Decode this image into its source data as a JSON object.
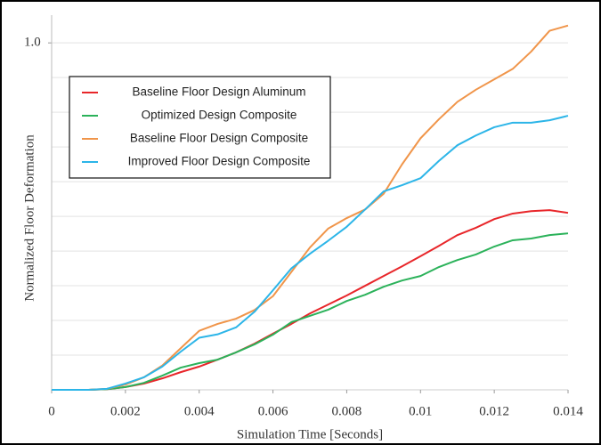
{
  "chart_data": {
    "type": "line",
    "xlabel": "Simulation Time [Seconds]",
    "ylabel": "Normalized Floor Deformation",
    "x": [
      0,
      0.0005,
      0.001,
      0.0015,
      0.002,
      0.0025,
      0.003,
      0.0035,
      0.004,
      0.0045,
      0.005,
      0.0055,
      0.006,
      0.0065,
      0.007,
      0.0075,
      0.008,
      0.0085,
      0.009,
      0.0095,
      0.01,
      0.0105,
      0.011,
      0.0115,
      0.012,
      0.0125,
      0.013,
      0.0135,
      0.014
    ],
    "series": [
      {
        "name": "Baseline Floor Design Aluminum",
        "color": "#e8262a",
        "values": [
          0,
          0,
          0,
          0.002,
          0.008,
          0.018,
          0.033,
          0.051,
          0.067,
          0.087,
          0.108,
          0.133,
          0.162,
          0.19,
          0.22,
          0.246,
          0.272,
          0.3,
          0.328,
          0.356,
          0.385,
          0.415,
          0.446,
          0.467,
          0.492,
          0.508,
          0.515,
          0.518,
          0.51
        ]
      },
      {
        "name": "Optimized Design Composite",
        "color": "#2bb25a",
        "values": [
          0,
          0,
          0,
          0.002,
          0.008,
          0.02,
          0.041,
          0.064,
          0.077,
          0.087,
          0.108,
          0.131,
          0.159,
          0.195,
          0.213,
          0.231,
          0.256,
          0.274,
          0.297,
          0.315,
          0.328,
          0.354,
          0.374,
          0.39,
          0.413,
          0.431,
          0.436,
          0.446,
          0.451
        ]
      },
      {
        "name": "Baseline Floor Design Composite",
        "color": "#f0954a",
        "values": [
          0,
          0,
          0,
          0.003,
          0.015,
          0.036,
          0.07,
          0.12,
          0.17,
          0.19,
          0.205,
          0.23,
          0.27,
          0.34,
          0.41,
          0.465,
          0.495,
          0.52,
          0.565,
          0.65,
          0.725,
          0.78,
          0.83,
          0.865,
          0.895,
          0.925,
          0.975,
          1.035,
          1.05
        ]
      },
      {
        "name": "Improved Floor Design Composite",
        "color": "#2cb5e8",
        "values": [
          0,
          0,
          0,
          0.003,
          0.018,
          0.036,
          0.067,
          0.11,
          0.15,
          0.16,
          0.18,
          0.225,
          0.287,
          0.35,
          0.392,
          0.43,
          0.47,
          0.52,
          0.572,
          0.59,
          0.61,
          0.66,
          0.705,
          0.733,
          0.757,
          0.77,
          0.77,
          0.777,
          0.79
        ]
      }
    ],
    "xlim": [
      0,
      0.014
    ],
    "xticks": [
      0,
      0.002,
      0.004,
      0.006,
      0.008,
      0.01,
      0.012,
      0.014
    ],
    "ylim": [
      0,
      1.08
    ],
    "yticks": [
      {
        "value": 1,
        "label": "1.0"
      }
    ],
    "grid_lines": [
      0.1,
      0.2,
      0.3,
      0.4,
      0.5,
      0.6,
      0.7,
      0.8,
      0.9,
      1
    ],
    "legend": "upper left"
  }
}
